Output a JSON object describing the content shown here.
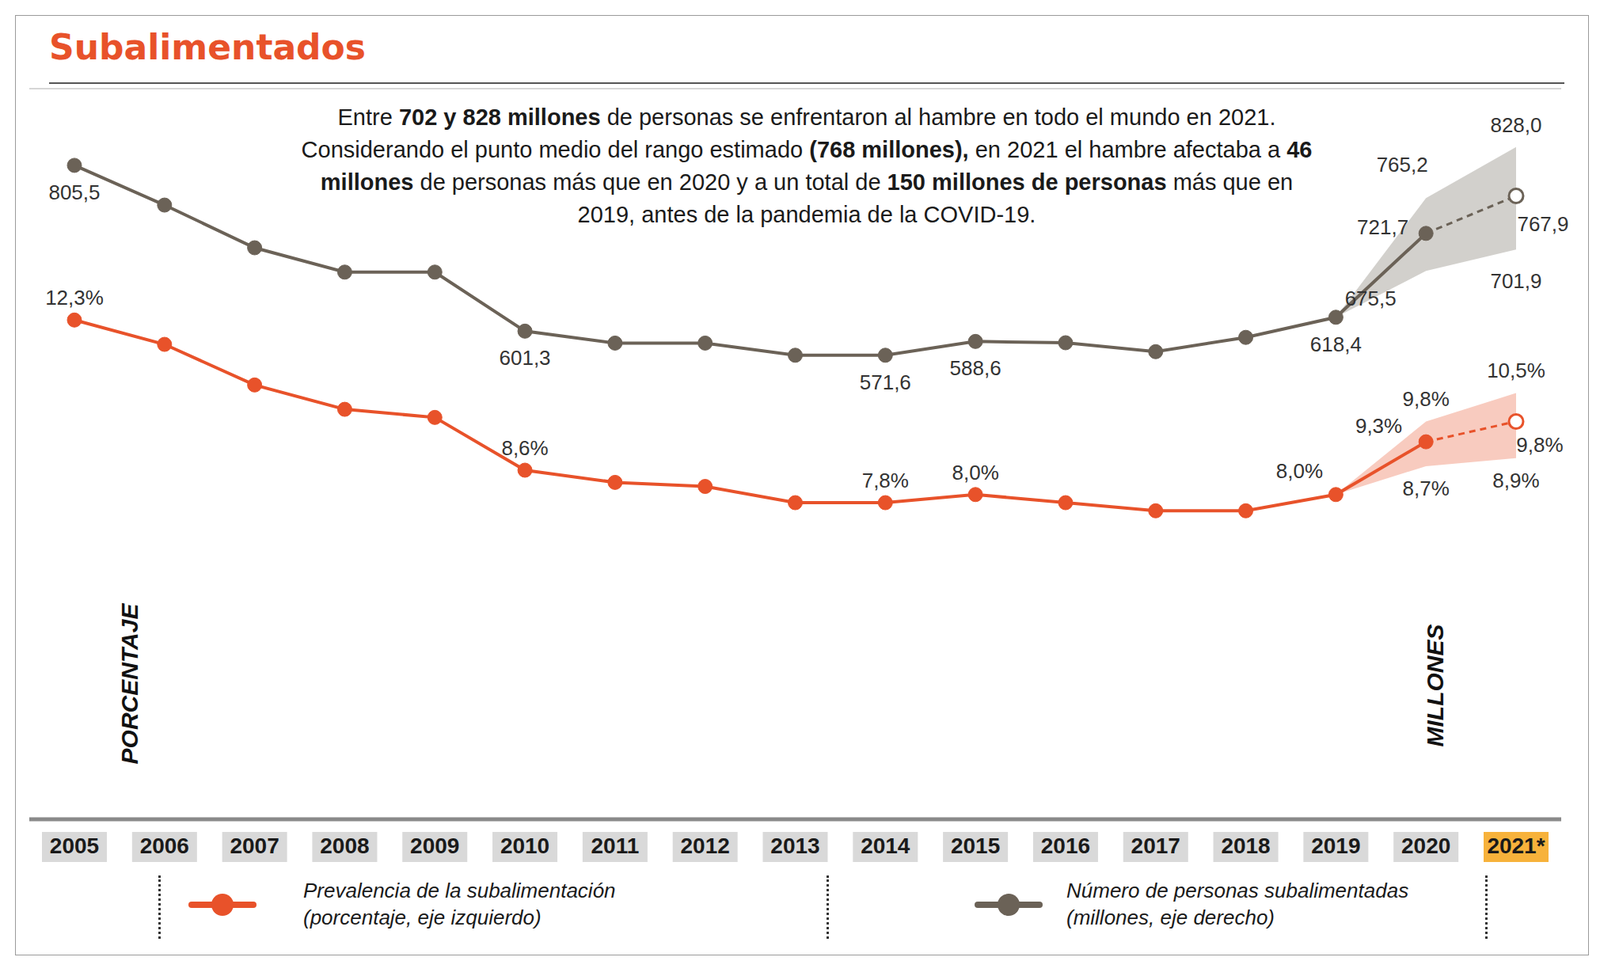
{
  "chart_data": {
    "type": "line",
    "title": "Subalimentados",
    "annotation": [
      "Entre ",
      "702 y 828 millones",
      " de personas se enfrentaron al hambre en todo el mundo en 2021. Considerando el punto medio del rango estimado ",
      "(768 millones),",
      " en 2021 el hambre afectaba a ",
      "46 millones",
      " de personas más que en 2020 y a un total de ",
      "150 millones de personas",
      " más que en 2019, antes de la pandemia de la COVID-19."
    ],
    "y_label": "PORCENTAJE",
    "y2_label": "MILLONES",
    "categories": [
      "2005",
      "2006",
      "2007",
      "2008",
      "2009",
      "2010",
      "2011",
      "2012",
      "2013",
      "2014",
      "2015",
      "2016",
      "2017",
      "2018",
      "2019",
      "2020",
      "2021*"
    ],
    "series": [
      {
        "name": "Prevalencia de la subalimentación (porcentaje, eje izquierdo)",
        "color": "#e8522a",
        "marker": "circle",
        "line_style": "solid",
        "values": [
          12.3,
          11.7,
          10.7,
          10.1,
          9.9,
          8.6,
          8.3,
          8.2,
          7.8,
          7.8,
          8.0,
          7.8,
          7.6,
          7.6,
          8.0,
          9.3,
          9.8
        ],
        "value_labels": [
          "12,3%",
          null,
          null,
          null,
          null,
          "8,6%",
          null,
          null,
          null,
          "7,8%",
          "8,0%",
          null,
          null,
          null,
          "8,0%",
          "9,3%",
          "9,8%"
        ],
        "lower": [
          null,
          null,
          null,
          null,
          null,
          null,
          null,
          null,
          null,
          null,
          null,
          null,
          null,
          null,
          null,
          8.7,
          8.9
        ],
        "lower_labels": [
          null,
          null,
          null,
          null,
          null,
          null,
          null,
          null,
          null,
          null,
          null,
          null,
          null,
          null,
          null,
          "8,7%",
          "8,9%"
        ],
        "upper": [
          null,
          null,
          null,
          null,
          null,
          null,
          null,
          null,
          null,
          null,
          null,
          null,
          null,
          null,
          null,
          9.8,
          10.5
        ],
        "upper_labels": [
          null,
          null,
          null,
          null,
          null,
          null,
          null,
          null,
          null,
          null,
          null,
          null,
          null,
          null,
          null,
          "9,8%",
          "10,5%"
        ]
      },
      {
        "name": "Número de personas subalimentadas (millones, eje derecho)",
        "color": "#6b6257",
        "axis": "y2",
        "marker": "circle",
        "line_style": "solid",
        "values": [
          805.5,
          756.6,
          704.0,
          674.0,
          674.0,
          601.3,
          586.6,
          586.6,
          571.6,
          571.6,
          588.6,
          587.0,
          576.0,
          593.6,
          618.4,
          721.7,
          767.9
        ],
        "value_labels": [
          "805,5",
          null,
          null,
          null,
          null,
          "601,3",
          null,
          null,
          null,
          "571,6",
          "588,6",
          null,
          null,
          null,
          "618,4",
          "721,7",
          "767,9"
        ],
        "lower": [
          null,
          null,
          null,
          null,
          null,
          null,
          null,
          null,
          null,
          null,
          null,
          null,
          null,
          null,
          null,
          675.5,
          701.9
        ],
        "lower_labels": [
          null,
          null,
          null,
          null,
          null,
          null,
          null,
          null,
          null,
          null,
          null,
          null,
          null,
          null,
          null,
          "675,5",
          "701,9"
        ],
        "upper": [
          null,
          null,
          null,
          null,
          null,
          null,
          null,
          null,
          null,
          null,
          null,
          null,
          null,
          null,
          null,
          765.2,
          828.0
        ],
        "upper_labels": [
          null,
          null,
          null,
          null,
          null,
          null,
          null,
          null,
          null,
          null,
          null,
          null,
          null,
          null,
          null,
          "765,2",
          "828,0"
        ]
      }
    ],
    "ylim": [
      0,
      18
    ],
    "yticks": [
      0,
      2,
      4,
      6,
      8,
      10,
      12,
      14,
      16,
      18
    ],
    "y2lim": [
      0,
      900
    ],
    "y2ticks": [
      0,
      100,
      200,
      300,
      400,
      500,
      600,
      700,
      800,
      900
    ],
    "grid": true,
    "tick_labels": false,
    "data_labels": true,
    "legend": "bottom"
  }
}
